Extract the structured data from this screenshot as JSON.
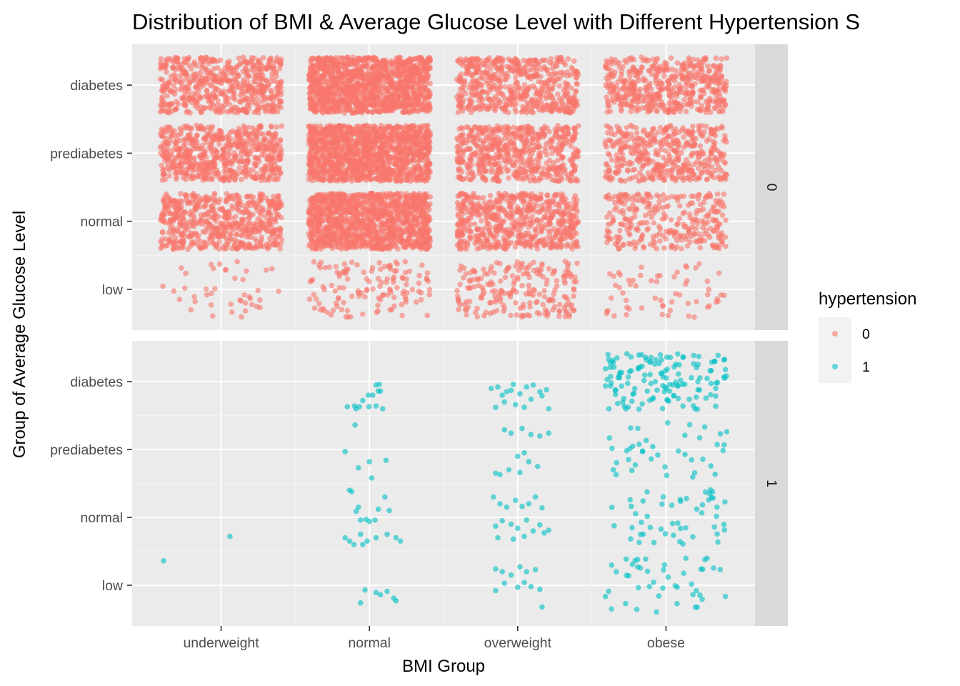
{
  "chart_data": {
    "type": "scatter",
    "title": "Distribution of BMI & Average Glucose Level with Different Hypertension S",
    "xlabel": "BMI Group",
    "ylabel": "Group of Average Glucose Level",
    "x_categories": [
      "underweight",
      "normal",
      "overweight",
      "obese"
    ],
    "y_categories": [
      "low",
      "normal",
      "prediabetes",
      "diabetes"
    ],
    "jitter": true,
    "facet_variable": "hypertension",
    "facets": [
      "0",
      "1"
    ],
    "legend": {
      "title": "hypertension",
      "position": "right",
      "entries": [
        {
          "label": "0",
          "color": "#F8766D"
        },
        {
          "label": "1",
          "color": "#00BFC4"
        }
      ]
    },
    "panel_background": "#ebebeb",
    "grid": true,
    "series": [
      {
        "name": "0",
        "color": "#F8766D",
        "approx_counts": [
          [
            42,
            130,
            210,
            60
          ],
          [
            590,
            1200,
            620,
            300
          ],
          [
            620,
            1300,
            580,
            440
          ],
          [
            560,
            1300,
            560,
            500
          ]
        ]
      },
      {
        "name": "1",
        "color": "#00BFC4",
        "points": [
          [
            1,
            4,
            1.72
          ],
          [
            1,
            1,
            1.36
          ],
          [
            2,
            2.6,
            3.63
          ],
          [
            2,
            2.93,
            3.64
          ],
          [
            2,
            3.15,
            3.63
          ],
          [
            2,
            3.58,
            3.63
          ],
          [
            2,
            3.0,
            3.6
          ],
          [
            2,
            3.9,
            3.64
          ],
          [
            2,
            4.2,
            3.6
          ],
          [
            2,
            3.3,
            3.72
          ],
          [
            2,
            3.55,
            3.8
          ],
          [
            2,
            3.75,
            3.8
          ],
          [
            2,
            4.0,
            3.86
          ],
          [
            2,
            4.1,
            3.86
          ],
          [
            2,
            3.9,
            3.95
          ],
          [
            2,
            2.95,
            3.36
          ],
          [
            2,
            4.05,
            3.96
          ],
          [
            2,
            2.5,
            2.97
          ],
          [
            2,
            3.1,
            2.73
          ],
          [
            2,
            3.6,
            2.82
          ],
          [
            2,
            4.35,
            2.84
          ],
          [
            2,
            3.7,
            2.58
          ],
          [
            2,
            3.0,
            2.09
          ],
          [
            2,
            3.1,
            2.15
          ],
          [
            2,
            3.2,
            1.96
          ],
          [
            2,
            3.45,
            1.97
          ],
          [
            2,
            3.6,
            1.94
          ],
          [
            2,
            3.85,
            1.96
          ],
          [
            2,
            4.0,
            2.12
          ],
          [
            2,
            4.3,
            2.3
          ],
          [
            2,
            4.5,
            2.1
          ],
          [
            2,
            2.7,
            2.4
          ],
          [
            2,
            2.8,
            2.38
          ],
          [
            2,
            2.5,
            1.7
          ],
          [
            2,
            2.7,
            1.65
          ],
          [
            2,
            2.9,
            1.6
          ],
          [
            2,
            3.2,
            1.75
          ],
          [
            2,
            3.5,
            1.65
          ],
          [
            2,
            3.9,
            1.7
          ],
          [
            2,
            4.4,
            1.75
          ],
          [
            2,
            4.8,
            1.7
          ],
          [
            2,
            5.0,
            1.65
          ],
          [
            2,
            3.3,
            1.6
          ],
          [
            2,
            3.4,
            0.93
          ],
          [
            2,
            3.9,
            0.89
          ],
          [
            2,
            4.1,
            0.86
          ],
          [
            2,
            4.4,
            0.91
          ],
          [
            2,
            4.7,
            0.81
          ],
          [
            2,
            3.2,
            0.74
          ],
          [
            2,
            4.8,
            0.77
          ],
          [
            3,
            2.4,
            3.9
          ],
          [
            3,
            2.7,
            3.92
          ],
          [
            3,
            3.1,
            3.85
          ],
          [
            3,
            3.4,
            3.96
          ],
          [
            3,
            3.7,
            3.82
          ],
          [
            3,
            4.0,
            3.92
          ],
          [
            3,
            4.3,
            3.95
          ],
          [
            3,
            4.6,
            3.85
          ],
          [
            3,
            4.9,
            3.88
          ],
          [
            3,
            5.0,
            3.6
          ],
          [
            3,
            2.6,
            3.62
          ],
          [
            3,
            3.0,
            3.7
          ],
          [
            3,
            3.5,
            3.66
          ],
          [
            3,
            3.9,
            3.62
          ],
          [
            3,
            4.2,
            3.74
          ],
          [
            3,
            4.7,
            3.79
          ],
          [
            3,
            2.9,
            3.8
          ],
          [
            3,
            3.3,
            3.87
          ],
          [
            3,
            3.0,
            3.29
          ],
          [
            3,
            3.3,
            3.24
          ],
          [
            3,
            3.8,
            3.31
          ],
          [
            3,
            4.2,
            3.22
          ],
          [
            3,
            4.6,
            3.2
          ],
          [
            3,
            5.0,
            3.24
          ],
          [
            3,
            3.6,
            2.9
          ],
          [
            3,
            3.9,
            2.95
          ],
          [
            3,
            2.6,
            2.65
          ],
          [
            3,
            2.8,
            2.63
          ],
          [
            3,
            3.2,
            2.7
          ],
          [
            3,
            3.7,
            2.66
          ],
          [
            3,
            4.1,
            2.82
          ],
          [
            3,
            4.5,
            2.75
          ],
          [
            3,
            2.5,
            2.3
          ],
          [
            3,
            2.8,
            2.2
          ],
          [
            3,
            3.1,
            2.15
          ],
          [
            3,
            3.5,
            2.25
          ],
          [
            3,
            3.8,
            2.16
          ],
          [
            3,
            4.1,
            2.2
          ],
          [
            3,
            4.4,
            2.3
          ],
          [
            3,
            4.7,
            2.14
          ],
          [
            3,
            2.6,
            1.87
          ],
          [
            3,
            2.9,
            1.95
          ],
          [
            3,
            3.3,
            1.9
          ],
          [
            3,
            3.6,
            1.84
          ],
          [
            3,
            4.0,
            1.96
          ],
          [
            3,
            4.3,
            1.8
          ],
          [
            3,
            4.6,
            1.89
          ],
          [
            3,
            5.0,
            1.81
          ],
          [
            3,
            2.7,
            1.7
          ],
          [
            3,
            3.4,
            1.68
          ],
          [
            3,
            3.9,
            1.72
          ],
          [
            3,
            4.8,
            1.77
          ],
          [
            3,
            2.6,
            1.24
          ],
          [
            3,
            2.9,
            1.2
          ],
          [
            3,
            3.3,
            1.15
          ],
          [
            3,
            3.7,
            1.27
          ],
          [
            3,
            4.0,
            1.2
          ],
          [
            3,
            4.4,
            1.23
          ],
          [
            3,
            3.0,
            1.03
          ],
          [
            3,
            3.6,
            0.97
          ],
          [
            3,
            4.2,
            0.98
          ],
          [
            3,
            4.6,
            0.94
          ],
          [
            3,
            2.6,
            0.92
          ],
          [
            3,
            3.9,
            1.04
          ],
          [
            3,
            4.7,
            0.68
          ]
        ],
        "obese_approx_counts": [
          45,
          50,
          40,
          140
        ]
      }
    ]
  }
}
